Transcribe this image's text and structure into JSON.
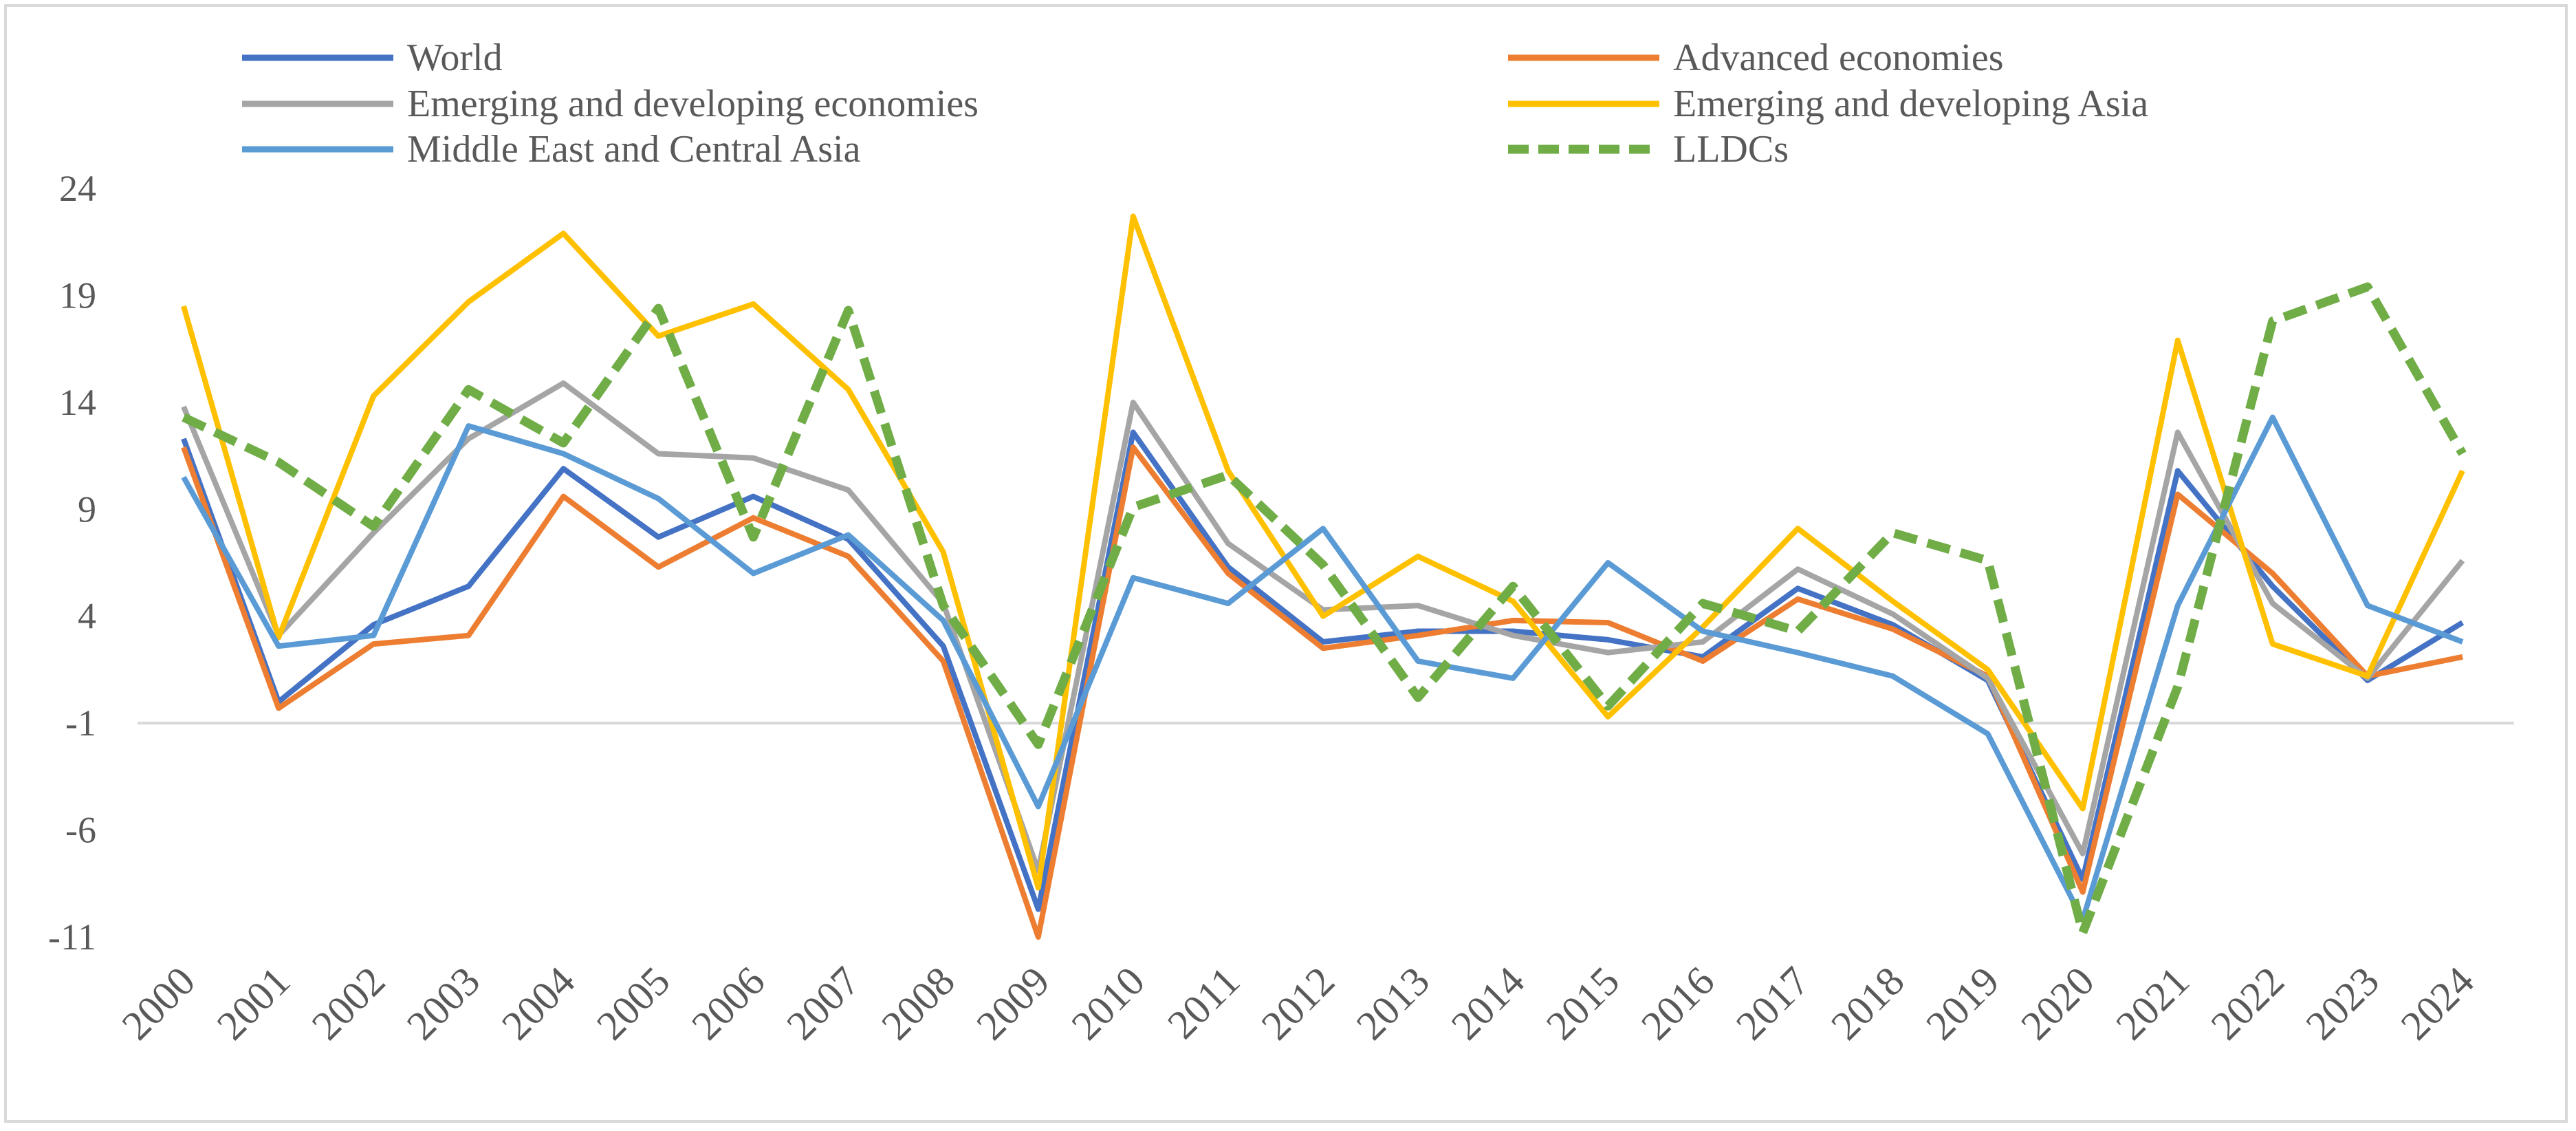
{
  "chart_data": {
    "type": "line",
    "title": "",
    "xlabel": "",
    "ylabel": "",
    "ylim": [
      -11,
      24
    ],
    "yticks": [
      24,
      19,
      14,
      9,
      4,
      -1,
      -6,
      -11
    ],
    "categories": [
      "2000",
      "2001",
      "2002",
      "2003",
      "2004",
      "2005",
      "2006",
      "2007",
      "2008",
      "2009",
      "2010",
      "2011",
      "2012",
      "2013",
      "2014",
      "2015",
      "2016",
      "2017",
      "2018",
      "2019",
      "2020",
      "2021",
      "2022",
      "2023",
      "2024"
    ],
    "legend_position": "top",
    "gridlines": false,
    "series": [
      {
        "name": "World",
        "color": "#4472c4",
        "dash": "solid",
        "values": [
          12.3,
          0.0,
          3.6,
          5.4,
          10.9,
          7.7,
          9.6,
          7.6,
          2.6,
          -9.7,
          12.6,
          6.3,
          2.8,
          3.3,
          3.3,
          2.9,
          2.1,
          5.3,
          3.6,
          1.0,
          -8.3,
          10.8,
          5.4,
          1.0,
          3.7
        ]
      },
      {
        "name": "Advanced economies",
        "color": "#ed7d31",
        "dash": "solid",
        "values": [
          11.9,
          -0.3,
          2.7,
          3.1,
          9.6,
          6.3,
          8.6,
          6.8,
          1.9,
          -11.0,
          11.9,
          6.0,
          2.5,
          3.1,
          3.8,
          3.7,
          1.9,
          4.8,
          3.4,
          1.2,
          -8.9,
          9.7,
          6.0,
          1.2,
          2.1
        ]
      },
      {
        "name": "Emerging and developing economies",
        "color": "#a5a5a5",
        "dash": "solid",
        "values": [
          13.8,
          3.1,
          7.9,
          12.3,
          14.9,
          11.6,
          11.4,
          9.9,
          4.6,
          -7.9,
          14.0,
          7.4,
          4.3,
          4.5,
          3.1,
          2.3,
          2.8,
          6.2,
          4.1,
          1.1,
          -7.1,
          12.6,
          4.6,
          1.1,
          6.6
        ]
      },
      {
        "name": "Emerging and developing Asia",
        "color": "#ffc000",
        "dash": "solid",
        "values": [
          18.5,
          3.0,
          14.3,
          18.7,
          21.9,
          17.1,
          18.6,
          14.6,
          7.0,
          -8.7,
          22.7,
          10.8,
          4.0,
          6.8,
          4.7,
          -0.7,
          3.5,
          8.1,
          4.7,
          1.5,
          -5.0,
          16.9,
          2.7,
          1.2,
          10.8
        ]
      },
      {
        "name": "Middle East and Central Asia",
        "color": "#5b9bd5",
        "dash": "solid",
        "values": [
          10.5,
          2.6,
          3.1,
          12.9,
          11.6,
          9.5,
          6.0,
          7.8,
          3.8,
          -4.9,
          5.8,
          4.6,
          8.1,
          1.9,
          1.1,
          6.5,
          3.3,
          2.3,
          1.2,
          -1.5,
          -10.2,
          4.5,
          13.3,
          4.5,
          2.8
        ]
      },
      {
        "name": "LLDCs",
        "color": "#70ad47",
        "dash": "dashed",
        "values": [
          13.3,
          11.2,
          8.2,
          14.6,
          12.1,
          18.4,
          7.7,
          18.3,
          4.5,
          -2.0,
          9.1,
          10.6,
          6.4,
          0.2,
          5.4,
          -0.2,
          4.6,
          3.3,
          7.9,
          6.6,
          -10.8,
          0.7,
          17.8,
          19.4,
          11.6
        ]
      }
    ]
  }
}
